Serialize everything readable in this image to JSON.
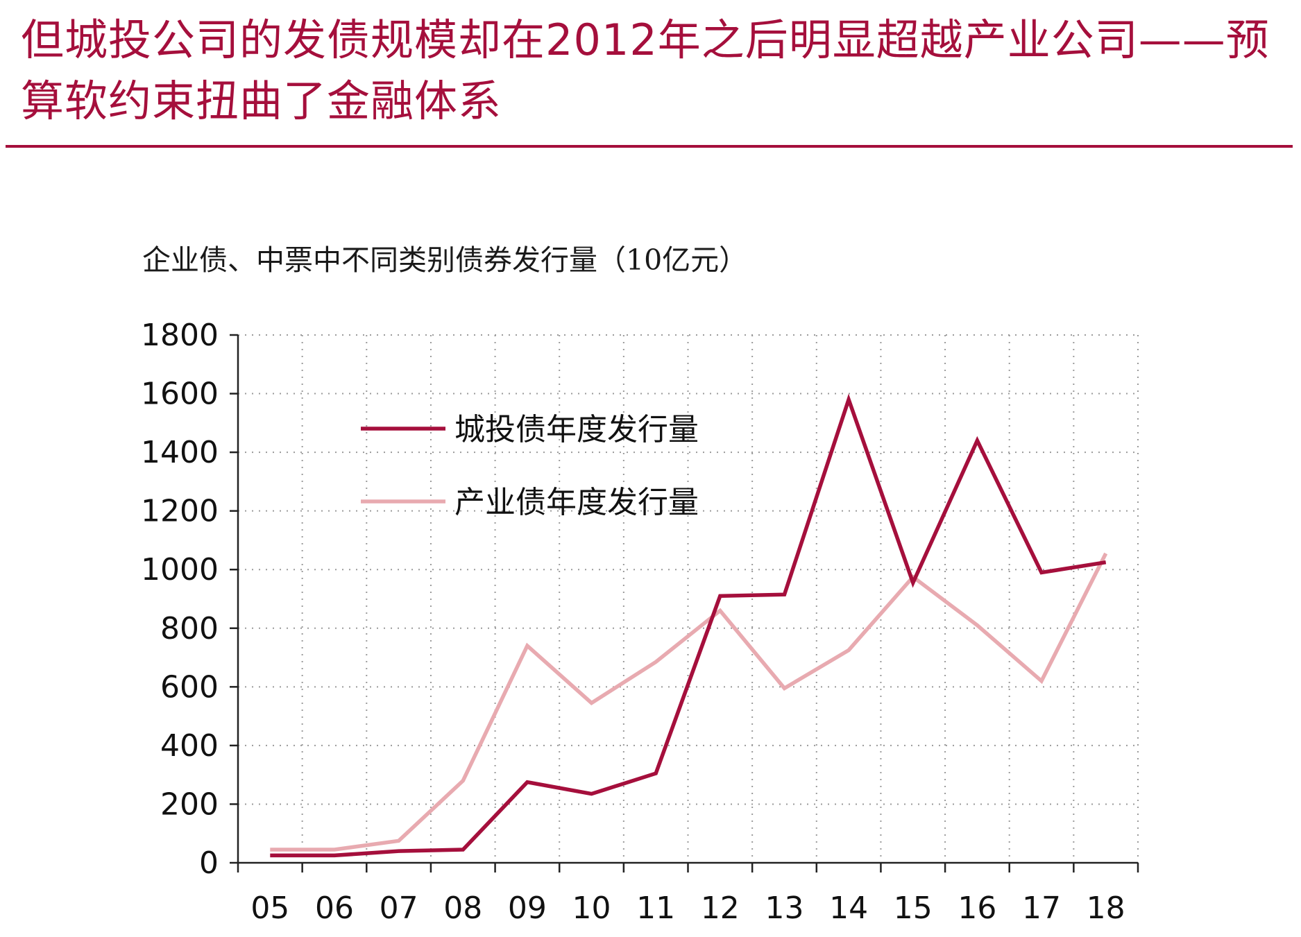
{
  "header": {
    "title": "但城投公司的发债规模却在2012年之后明显超越产业公司——预算软约束扭曲了金融体系"
  },
  "colors": {
    "accent": "#a50f3c",
    "chengtou": "#a50f3c",
    "chanye": "#e8aab0",
    "grid": "#9a9a9a",
    "axis": "#222222"
  },
  "chart_data": {
    "type": "line",
    "title": "企业债、中票中不同类别债券发行量（10亿元）",
    "xlabel": "",
    "ylabel": "",
    "categories": [
      "05",
      "06",
      "07",
      "08",
      "09",
      "10",
      "11",
      "12",
      "13",
      "14",
      "15",
      "16",
      "17",
      "18"
    ],
    "ylim": [
      0,
      1800
    ],
    "yticks": [
      "0",
      "200",
      "400",
      "600",
      "800",
      "1000",
      "1200",
      "1400",
      "1600",
      "1800"
    ],
    "grid": true,
    "legend_position": "top-left",
    "series": [
      {
        "name": "城投债年度发行量",
        "color": "#a50f3c",
        "values": [
          25,
          25,
          40,
          45,
          275,
          235,
          305,
          910,
          915,
          1580,
          955,
          1440,
          990,
          1025
        ]
      },
      {
        "name": "产业债年度发行量",
        "color": "#e8aab0",
        "values": [
          45,
          45,
          75,
          280,
          740,
          545,
          685,
          860,
          595,
          725,
          975,
          810,
          620,
          1055
        ]
      }
    ]
  }
}
